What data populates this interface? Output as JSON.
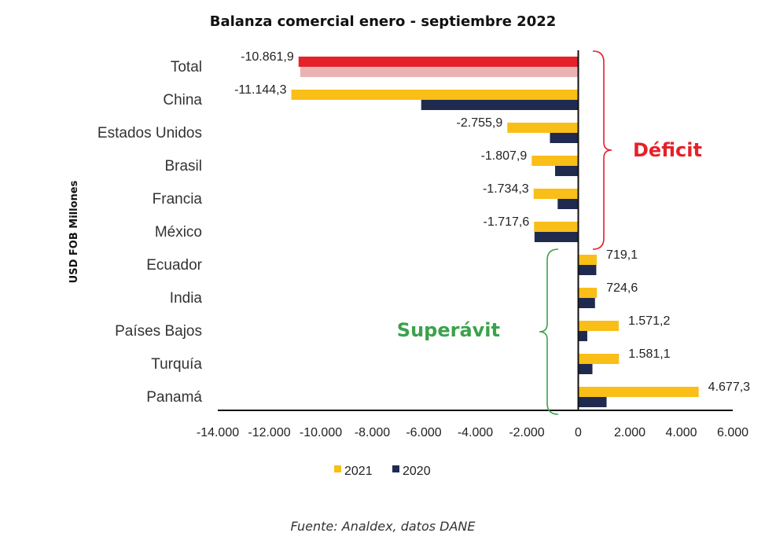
{
  "chart_data": {
    "type": "bar",
    "orientation": "horizontal",
    "title": "Balanza comercial enero - septiembre 2022",
    "ylabel": "USD FOB Millones",
    "xlabel": "",
    "xlim": [
      -14000,
      6000
    ],
    "xticks": [
      -14000,
      -12000,
      -10000,
      -8000,
      -6000,
      -4000,
      -2000,
      0,
      2000,
      4000,
      6000
    ],
    "xtick_labels": [
      "-14.000",
      "-12.000",
      "-10.000",
      "-8.000",
      "-6.000",
      "-4.000",
      "-2.000",
      "0",
      "2.000",
      "4.000",
      "6.000"
    ],
    "categories": [
      "Total",
      "China",
      "Estados Unidos",
      "Brasil",
      "Francia",
      "México",
      "Ecuador",
      "India",
      "Países Bajos",
      "Turquía",
      "Panamá"
    ],
    "series": [
      {
        "name": "2021",
        "color": "#F9BE17",
        "values": [
          -10861.9,
          -11144.3,
          -2755.9,
          -1807.9,
          -1734.3,
          -1717.6,
          719.1,
          724.6,
          1571.2,
          1581.1,
          4677.3
        ],
        "labels": [
          "-10.861,9",
          "-11.144,3",
          "-2.755,9",
          "-1.807,9",
          "-1.734,3",
          "-1.717,6",
          "719,1",
          "724,6",
          "1.571,2",
          "1.581,1",
          "4.677,3"
        ]
      },
      {
        "name": "2020",
        "color": "#1F2A4E",
        "values": [
          -10800,
          -6100,
          -1100,
          -900,
          -800,
          -1700,
          700,
          650,
          350,
          550,
          1100
        ]
      }
    ],
    "highlight": {
      "category": "Total",
      "colors": [
        "#E5212A",
        "#EAB3B3"
      ]
    },
    "annotations": [
      {
        "text": "Déficit",
        "color": "#E5212A",
        "range": [
          "Total",
          "México"
        ]
      },
      {
        "text": "Superávit",
        "color": "#3BA24B",
        "range": [
          "Ecuador",
          "Panamá"
        ]
      }
    ],
    "legend": {
      "position": "bottom-center",
      "entries": [
        "2021",
        "2020"
      ]
    },
    "grid": false
  },
  "source": "Fuente: Analdex, datos DANE"
}
